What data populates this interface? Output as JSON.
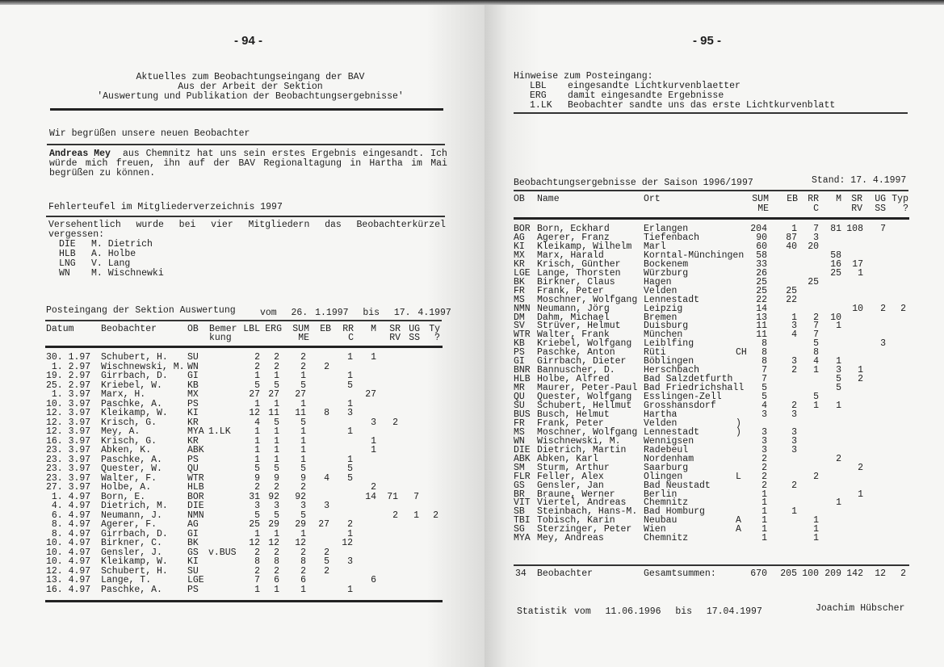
{
  "left": {
    "page_number": "- 94 -",
    "title_lines": [
      "Aktuelles zum Beobachtungseingang der BAV",
      "Aus der Arbeit der Sektion",
      "'Auswertung und Publikation der Beobachtungsergebnisse'"
    ],
    "welcome_heading": "Wir begrüßen unsere neuen Beobachter",
    "welcome_name": "Andreas Mey",
    "welcome_line1_words": [
      "aus",
      "Chemnitz",
      "hat",
      "uns",
      "sein",
      "erstes",
      "Ergebnis",
      "eingesandt.",
      "Ich"
    ],
    "welcome_line2_words": [
      "würde",
      "mich",
      "freuen,",
      "ihn",
      "auf",
      "der",
      "BAV",
      "Regionaltagung",
      "in",
      "Hartha",
      "im",
      "Mai"
    ],
    "welcome_line3": "begrüßen zu können.",
    "errata_heading": "Fehlerteufel im Mitgliederverzeichnis 1997",
    "errata_line1_words": [
      "Versehentlich",
      "wurde",
      "bei",
      "vier",
      "Mitgliedern",
      "das",
      "Beobachterkürzel"
    ],
    "errata_line2": "vergessen:",
    "errata_items": [
      {
        "code": "DIE",
        "name": "M. Dietrich"
      },
      {
        "code": "HLB",
        "name": "A. Holbe"
      },
      {
        "code": "LNG",
        "name": "V. Lang"
      },
      {
        "code": "WN",
        "name": "M. Wischnewki"
      }
    ],
    "inbox_heading": "Posteingang der Sektion Auswertung",
    "inbox_range": "vom  26. 1.1997  bis  17. 4.1997",
    "columns": [
      [
        "Datum",
        ""
      ],
      [
        "Beobachter",
        ""
      ],
      [
        "OB",
        ""
      ],
      [
        "Bemer",
        "kung"
      ],
      [
        "LBL",
        ""
      ],
      [
        "ERG",
        ""
      ],
      [
        "SUM",
        "ME"
      ],
      [
        "EB",
        ""
      ],
      [
        "RR",
        "C"
      ],
      [
        "M",
        ""
      ],
      [
        "SR",
        "RV"
      ],
      [
        "UG",
        "SS"
      ],
      [
        "Ty",
        "?"
      ]
    ],
    "rows": [
      [
        "30. 1.97",
        "Schubert, H.",
        "SU",
        "",
        "2",
        "2",
        "2",
        "",
        "1",
        "1",
        "",
        "",
        ""
      ],
      [
        " 1. 2.97",
        "Wischnewski, M.",
        "WN",
        "",
        "2",
        "2",
        "2",
        "2",
        "",
        "",
        "",
        "",
        ""
      ],
      [
        "19. 2.97",
        "Girrbach, D.",
        "GI",
        "",
        "1",
        "1",
        "1",
        "",
        "1",
        "",
        "",
        "",
        ""
      ],
      [
        "25. 2.97",
        "Kriebel, W.",
        "KB",
        "",
        "5",
        "5",
        "5",
        "",
        "5",
        "",
        "",
        "",
        ""
      ],
      [
        " 1. 3.97",
        "Marx, H.",
        "MX",
        "",
        "27",
        "27",
        "27",
        "",
        "",
        "27",
        "",
        "",
        ""
      ],
      [
        "10. 3.97",
        "Paschke, A.",
        "PS",
        "",
        "1",
        "1",
        "1",
        "",
        "1",
        "",
        "",
        "",
        ""
      ],
      [
        "12. 3.97",
        "Kleikamp, W.",
        "KI",
        "",
        "12",
        "11",
        "11",
        "8",
        "3",
        "",
        "",
        "",
        ""
      ],
      [
        "12. 3.97",
        "Krisch, G.",
        "KR",
        "",
        "4",
        "5",
        "5",
        "",
        "",
        "3",
        "2",
        "",
        ""
      ],
      [
        "12. 3.97",
        "Mey, A.",
        "MYA",
        "1.LK",
        "1",
        "1",
        "1",
        "",
        "1",
        "",
        "",
        "",
        ""
      ],
      [
        "16. 3.97",
        "Krisch, G.",
        "KR",
        "",
        "1",
        "1",
        "1",
        "",
        "",
        "1",
        "",
        "",
        ""
      ],
      [
        "23. 3.97",
        "Abken, K.",
        "ABK",
        "",
        "1",
        "1",
        "1",
        "",
        "",
        "1",
        "",
        "",
        ""
      ],
      [
        "23. 3.97",
        "Paschke, A.",
        "PS",
        "",
        "1",
        "1",
        "1",
        "",
        "1",
        "",
        "",
        "",
        ""
      ],
      [
        "23. 3.97",
        "Quester, W.",
        "QU",
        "",
        "5",
        "5",
        "5",
        "",
        "5",
        "",
        "",
        "",
        ""
      ],
      [
        "23. 3.97",
        "Walter, F.",
        "WTR",
        "",
        "9",
        "9",
        "9",
        "4",
        "5",
        "",
        "",
        "",
        ""
      ],
      [
        "27. 3.97",
        "Holbe, A.",
        "HLB",
        "",
        "2",
        "2",
        "2",
        "",
        "",
        "2",
        "",
        "",
        ""
      ],
      [
        " 1. 4.97",
        "Born, E.",
        "BOR",
        "",
        "31",
        "92",
        "92",
        "",
        "",
        "14",
        "71",
        "7",
        ""
      ],
      [
        " 4. 4.97",
        "Dietrich, M.",
        "DIE",
        "",
        "3",
        "3",
        "3",
        "3",
        "",
        "",
        "",
        "",
        ""
      ],
      [
        " 6. 4.97",
        "Neumann, J.",
        "NMN",
        "",
        "5",
        "5",
        "5",
        "",
        "",
        "",
        "2",
        "1",
        "2"
      ],
      [
        " 8. 4.97",
        "Agerer, F.",
        "AG",
        "",
        "25",
        "29",
        "29",
        "27",
        "2",
        "",
        "",
        "",
        ""
      ],
      [
        " 8. 4.97",
        "Girrbach, D.",
        "GI",
        "",
        "1",
        "1",
        "1",
        "",
        "1",
        "",
        "",
        "",
        ""
      ],
      [
        "10. 4.97",
        "Birkner, C.",
        "BK",
        "",
        "12",
        "12",
        "12",
        "",
        "12",
        "",
        "",
        "",
        ""
      ],
      [
        "10. 4.97",
        "Gensler, J.",
        "GS",
        "v.BUS",
        "2",
        "2",
        "2",
        "2",
        "",
        "",
        "",
        "",
        ""
      ],
      [
        "10. 4.97",
        "Kleikamp, W.",
        "KI",
        "",
        "8",
        "8",
        "8",
        "5",
        "3",
        "",
        "",
        "",
        ""
      ],
      [
        "12. 4.97",
        "Schubert, H.",
        "SU",
        "",
        "2",
        "2",
        "2",
        "2",
        "",
        "",
        "",
        "",
        ""
      ],
      [
        "13. 4.97",
        "Lange, T.",
        "LGE",
        "",
        "7",
        "6",
        "6",
        "",
        "",
        "6",
        "",
        "",
        ""
      ],
      [
        "16. 4.97",
        "Paschke, A.",
        "PS",
        "",
        "1",
        "1",
        "1",
        "",
        "1",
        "",
        "",
        "",
        ""
      ]
    ]
  },
  "right": {
    "page_number": "- 95 -",
    "notes_heading": "Hinweise zum Posteingang:",
    "notes": [
      {
        "code": "LBL",
        "text": "eingesandte Lichtkurvenblaetter"
      },
      {
        "code": "ERG",
        "text": "damit eingesandte Ergebnisse"
      },
      {
        "code": "1.LK",
        "text": "Beobachter sandte uns das erste Lichtkurvenblatt"
      }
    ],
    "results_heading": "Beobachtungsergebnisse der Saison 1996/1997",
    "results_date": "Stand: 17. 4.1997",
    "columns": [
      [
        "OB",
        ""
      ],
      [
        "Name",
        ""
      ],
      [
        "Ort",
        ""
      ],
      [
        "",
        ""
      ],
      [
        "SUM",
        "ME"
      ],
      [
        "EB",
        ""
      ],
      [
        "RR",
        "C"
      ],
      [
        "M",
        ""
      ],
      [
        "SR",
        "RV"
      ],
      [
        "UG",
        "SS"
      ],
      [
        "Typ",
        "?"
      ]
    ],
    "rows": [
      [
        "BOR",
        "Born, Eckhard",
        "Erlangen",
        "",
        "204",
        "1",
        "7",
        "81",
        "108",
        "7",
        ""
      ],
      [
        "AG",
        "Agerer, Franz",
        "Tiefenbach",
        "",
        "90",
        "87",
        "3",
        "",
        "",
        "",
        ""
      ],
      [
        "KI",
        "Kleikamp, Wilhelm",
        "Marl",
        "",
        "60",
        "40",
        "20",
        "",
        "",
        "",
        ""
      ],
      [
        "MX",
        "Marx, Harald",
        "Korntal-Münchingen",
        "",
        "58",
        "",
        "",
        "58",
        "",
        "",
        ""
      ],
      [
        "KR",
        "Krisch, Günther",
        "Bockenem",
        "",
        "33",
        "",
        "",
        "16",
        "17",
        "",
        ""
      ],
      [
        "LGE",
        "Lange, Thorsten",
        "Würzburg",
        "",
        "26",
        "",
        "",
        "25",
        "1",
        "",
        ""
      ],
      [
        "BK",
        "Birkner, Claus",
        "Hagen",
        "",
        "25",
        "",
        "25",
        "",
        "",
        "",
        ""
      ],
      [
        "FR",
        "Frank, Peter",
        "Velden",
        "",
        "25",
        "25",
        "",
        "",
        "",
        "",
        ""
      ],
      [
        "MS",
        "Moschner, Wolfgang",
        "Lennestadt",
        "",
        "22",
        "22",
        "",
        "",
        "",
        "",
        ""
      ],
      [
        "NMN",
        "Neumann, Jörg",
        "Leipzig",
        "",
        "14",
        "",
        "",
        "",
        "10",
        "2",
        "2"
      ],
      [
        "DM",
        "Dahm, Michael",
        "Bremen",
        "",
        "13",
        "1",
        "2",
        "10",
        "",
        "",
        ""
      ],
      [
        "SV",
        "Strüver, Helmut",
        "Duisburg",
        "",
        "11",
        "3",
        "7",
        "1",
        "",
        "",
        ""
      ],
      [
        "WTR",
        "Walter, Frank",
        "München",
        "",
        "11",
        "4",
        "7",
        "",
        "",
        "",
        ""
      ],
      [
        "KB",
        "Kriebel, Wolfgang",
        "Leiblfing",
        "",
        "8",
        "",
        "5",
        "",
        "",
        "3",
        ""
      ],
      [
        "PS",
        "Paschke, Anton",
        "Rüti",
        "CH",
        "8",
        "",
        "8",
        "",
        "",
        "",
        ""
      ],
      [
        "GI",
        "Girrbach, Dieter",
        "Böblingen",
        "",
        "8",
        "3",
        "4",
        "1",
        "",
        "",
        ""
      ],
      [
        "BNR",
        "Bannuscher, D.",
        "Herschbach",
        "",
        "7",
        "2",
        "1",
        "3",
        "1",
        "",
        ""
      ],
      [
        "HLB",
        "Holbe, Alfred",
        "Bad Salzdetfurth",
        "",
        "7",
        "",
        "",
        "5",
        "2",
        "",
        ""
      ],
      [
        "MR",
        "Maurer, Peter-Paul",
        "Bad Friedrichshall",
        "",
        "5",
        "",
        "",
        "5",
        "",
        "",
        ""
      ],
      [
        "QU",
        "Quester, Wolfgang",
        "Esslingen-Zell",
        "",
        "5",
        "",
        "5",
        "",
        "",
        "",
        ""
      ],
      [
        "SU",
        "Schubert, Hellmut",
        "Grosshansdorf",
        "",
        "4",
        "2",
        "1",
        "1",
        "",
        "",
        ""
      ],
      [
        "BUS",
        "Busch, Helmut",
        "Hartha",
        "",
        "3",
        "3",
        "",
        "",
        "",
        "",
        ""
      ],
      [
        "FR",
        "Frank, Peter",
        "Velden",
        ")",
        "",
        "",
        "",
        "",
        "",
        "",
        ""
      ],
      [
        "MS",
        "Moschner, Wolfgang",
        "Lennestadt",
        ")",
        "3",
        "3",
        "",
        "",
        "",
        "",
        ""
      ],
      [
        "WN",
        "Wischnewski, M.",
        "Wennigsen",
        "",
        "3",
        "3",
        "",
        "",
        "",
        "",
        ""
      ],
      [
        "DIE",
        "Dietrich, Martin",
        "Radebeul",
        "",
        "3",
        "3",
        "",
        "",
        "",
        "",
        ""
      ],
      [
        "ABK",
        "Abken, Karl",
        "Nordenham",
        "",
        "2",
        "",
        "",
        "2",
        "",
        "",
        ""
      ],
      [
        "SM",
        "Sturm, Arthur",
        "Saarburg",
        "",
        "2",
        "",
        "",
        "",
        "2",
        "",
        ""
      ],
      [
        "FLR",
        "Feller, Alex",
        "Olingen",
        "L",
        "2",
        "",
        "2",
        "",
        "",
        "",
        ""
      ],
      [
        "GS",
        "Gensler, Jan",
        "Bad Neustadt",
        "",
        "2",
        "2",
        "",
        "",
        "",
        "",
        ""
      ],
      [
        "BR",
        "Braune, Werner",
        "Berlin",
        "",
        "1",
        "",
        "",
        "",
        "1",
        "",
        ""
      ],
      [
        "VIT",
        "Viertel, Andreas",
        "Chemnitz",
        "",
        "1",
        "",
        "",
        "1",
        "",
        "",
        ""
      ],
      [
        "SB",
        "Steinbach, Hans-M.",
        "Bad Homburg",
        "",
        "1",
        "1",
        "",
        "",
        "",
        "",
        ""
      ],
      [
        "TBI",
        "Tobisch, Karin",
        "Neubau",
        "A",
        "1",
        "",
        "1",
        "",
        "",
        "",
        ""
      ],
      [
        "SG",
        "Sterzinger, Peter",
        "Wien",
        "A",
        "1",
        "",
        "1",
        "",
        "",
        "",
        ""
      ],
      [
        "MYA",
        "Mey, Andreas",
        "Chemnitz",
        "",
        "1",
        "",
        "1",
        "",
        "",
        "",
        ""
      ]
    ],
    "totals": {
      "count": "34",
      "label": "Beobachter",
      "sum_label": "Gesamtsummen:",
      "values": [
        "670",
        "205",
        "100",
        "209",
        "142",
        "12",
        "2"
      ]
    },
    "footer_stats": "Statistik vom  11.06.1996  bis  17.04.1997",
    "footer_author": "Joachim Hübscher"
  }
}
